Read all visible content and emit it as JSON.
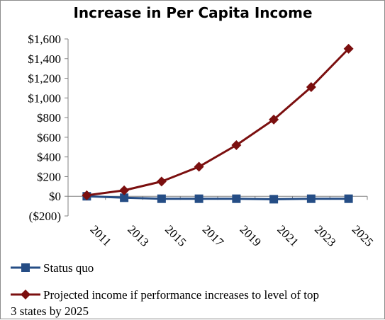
{
  "chart_data": {
    "type": "line",
    "title": "Increase in Per Capita Income",
    "categories": [
      "2011",
      "2013",
      "2015",
      "2017",
      "2019",
      "2021",
      "2023",
      "2025"
    ],
    "ylim": [
      -200,
      1600
    ],
    "yticks": [
      -200,
      0,
      200,
      400,
      600,
      800,
      1000,
      1200,
      1400,
      1600
    ],
    "ytick_labels": [
      "($200)",
      "$0",
      "$200",
      "$400",
      "$600",
      "$800",
      "$1,000",
      "$1,200",
      "$1,400",
      "$1,600"
    ],
    "grid": false,
    "legend_position": "bottom",
    "series": [
      {
        "name": "Status quo",
        "color": "#254d85",
        "marker": "square",
        "values": [
          0,
          -15,
          -25,
          -25,
          -25,
          -30,
          -25,
          -25
        ]
      },
      {
        "name": "Projected income if performance increases to level of top 3 states by 2025",
        "color": "#7b0f0f",
        "marker": "diamond",
        "values": [
          10,
          60,
          150,
          300,
          520,
          780,
          1110,
          1500
        ]
      }
    ]
  },
  "legend": {
    "status_quo": "Status quo",
    "projected_line1": "Projected income if performance increases to level of top",
    "projected_line2": "3 states by 2025"
  }
}
